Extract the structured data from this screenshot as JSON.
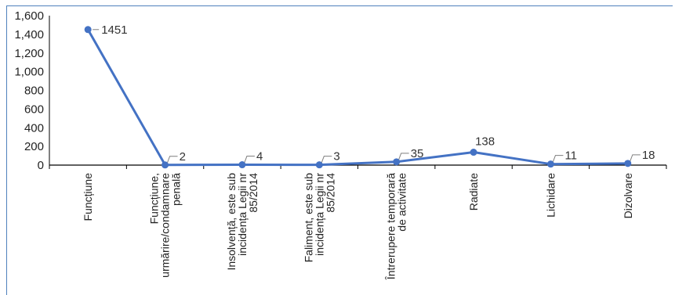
{
  "chart_data": {
    "type": "line",
    "categories": [
      "Funcțiune",
      "Funcțiune, urmărire/condamnare penală",
      "Insolvență, este sub incidența Legii nr 85/2014",
      "Faliment, este sub incidența Legii nr 85/2014",
      "Întrerupere temporară de activitate",
      "Radiate",
      "Lichidare",
      "Dizolvare"
    ],
    "category_lines": [
      [
        "Funcțiune"
      ],
      [
        "Funcțiune,",
        "urmărire/condamnare",
        "penală"
      ],
      [
        "Insolvență, este sub",
        "incidența Legii nr",
        "85/2014"
      ],
      [
        "Faliment, este sub",
        "incidența Legii nr",
        "85/2014"
      ],
      [
        "Întrerupere temporară",
        "de activitate"
      ],
      [
        "Radiate"
      ],
      [
        "Lichidare"
      ],
      [
        "Dizolvare"
      ]
    ],
    "values": [
      1451,
      2,
      4,
      3,
      35,
      138,
      11,
      18
    ],
    "data_labels": [
      "1451",
      "2",
      "4",
      "3",
      "35",
      "138",
      "11",
      "18"
    ],
    "ylim": [
      0,
      1600
    ],
    "yticks": [
      "0",
      "200",
      "400",
      "600",
      "800",
      "1,000",
      "1,200",
      "1,400",
      "1,600"
    ],
    "ytick_values": [
      0,
      200,
      400,
      600,
      800,
      1000,
      1200,
      1400,
      1600
    ],
    "grid": false,
    "legend": "none",
    "colors": {
      "line": "#4472c4",
      "axis": "#000000",
      "frame": "#4f81bd",
      "leader": "#7f7f7f"
    }
  }
}
